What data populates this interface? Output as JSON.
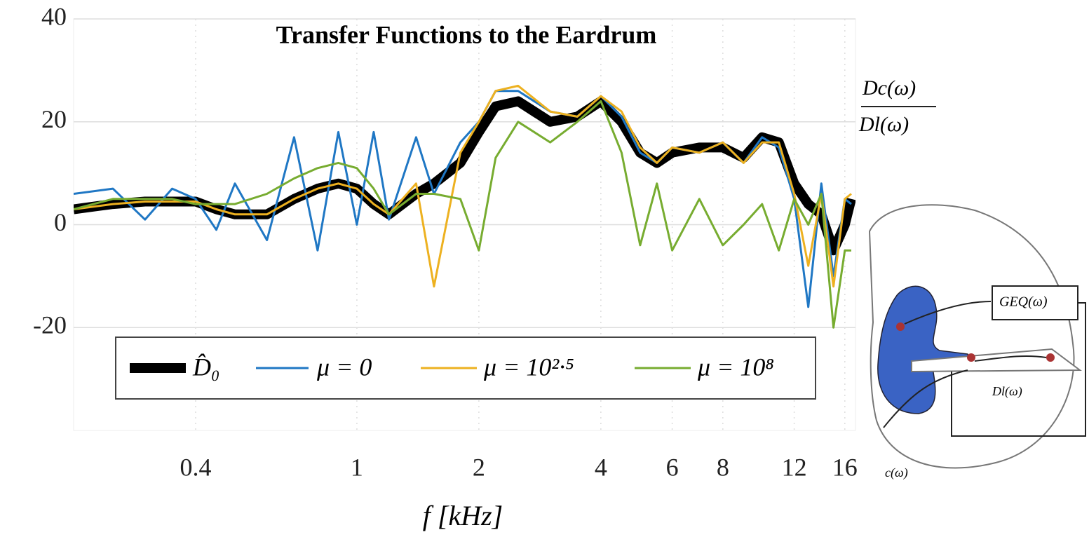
{
  "chart_data": {
    "type": "line",
    "title": "Transfer Functions to the Eardrum",
    "x_label": "f [kHz]",
    "x": [
      0.2,
      0.25,
      0.3,
      0.35,
      0.4,
      0.45,
      0.5,
      0.6,
      0.7,
      0.8,
      0.9,
      1.0,
      1.1,
      1.2,
      1.4,
      1.55,
      1.8,
      2.0,
      2.2,
      2.5,
      3.0,
      3.5,
      4.0,
      4.5,
      5.0,
      5.5,
      6.0,
      7.0,
      8.0,
      9.0,
      10,
      11,
      12,
      13,
      14,
      15,
      16,
      16.6
    ],
    "series": [
      {
        "name": "D̂₀",
        "color": "#000000",
        "width": 14,
        "values": [
          3,
          4,
          4.5,
          4.5,
          4.5,
          3,
          2,
          2,
          5,
          7,
          8,
          7,
          4,
          2,
          6,
          8,
          12,
          18,
          23,
          24,
          20,
          21,
          24,
          20,
          14,
          12,
          14,
          15,
          15,
          13,
          17,
          16,
          8,
          4,
          2,
          -5,
          0,
          5
        ]
      },
      {
        "name": "μ = 0",
        "color": "#1f77c4",
        "width": 3,
        "values": [
          6,
          7,
          1,
          7,
          5,
          -1,
          8,
          -3,
          17,
          -5,
          18,
          0,
          18,
          1,
          17,
          6,
          16,
          20,
          26,
          26,
          22,
          21,
          25,
          21,
          14,
          12,
          15,
          14,
          16,
          12,
          17,
          15,
          5,
          -16,
          8,
          -10,
          5,
          4
        ]
      },
      {
        "name": "μ = 10²·⁵",
        "color": "#edb120",
        "width": 3,
        "values": [
          3,
          4,
          4.5,
          4.5,
          4.5,
          3,
          2,
          2,
          5,
          7,
          8,
          7,
          4,
          2,
          8,
          -12,
          14,
          20,
          26,
          27,
          22,
          21,
          25,
          22,
          15,
          12,
          15,
          14,
          16,
          12,
          16,
          16,
          6,
          -8,
          6,
          -12,
          5,
          6
        ]
      },
      {
        "name": "μ = 10⁸",
        "color": "#77ac30",
        "width": 3,
        "values": [
          3,
          5,
          5,
          5,
          4,
          4,
          4,
          6,
          9,
          11,
          12,
          11,
          7,
          2,
          6,
          6,
          5,
          -5,
          13,
          20,
          16,
          20,
          24,
          14,
          -4,
          8,
          -5,
          5,
          -4,
          0,
          4,
          -5,
          5,
          0,
          6,
          -20,
          -5,
          -5
        ]
      }
    ],
    "xscale": "log",
    "xlim": [
      0.2,
      17
    ],
    "xticks": [
      0.4,
      1,
      2,
      4,
      6,
      8,
      12,
      16
    ],
    "ylim": [
      -40,
      40
    ],
    "yticks": [
      -20,
      0,
      20,
      40
    ],
    "grid": true
  },
  "diagram": {
    "labels": [
      "Dc(ω)",
      "Dl(ω)",
      "GEQ(ω)",
      "Dl(ω)",
      "c(ω)"
    ]
  }
}
